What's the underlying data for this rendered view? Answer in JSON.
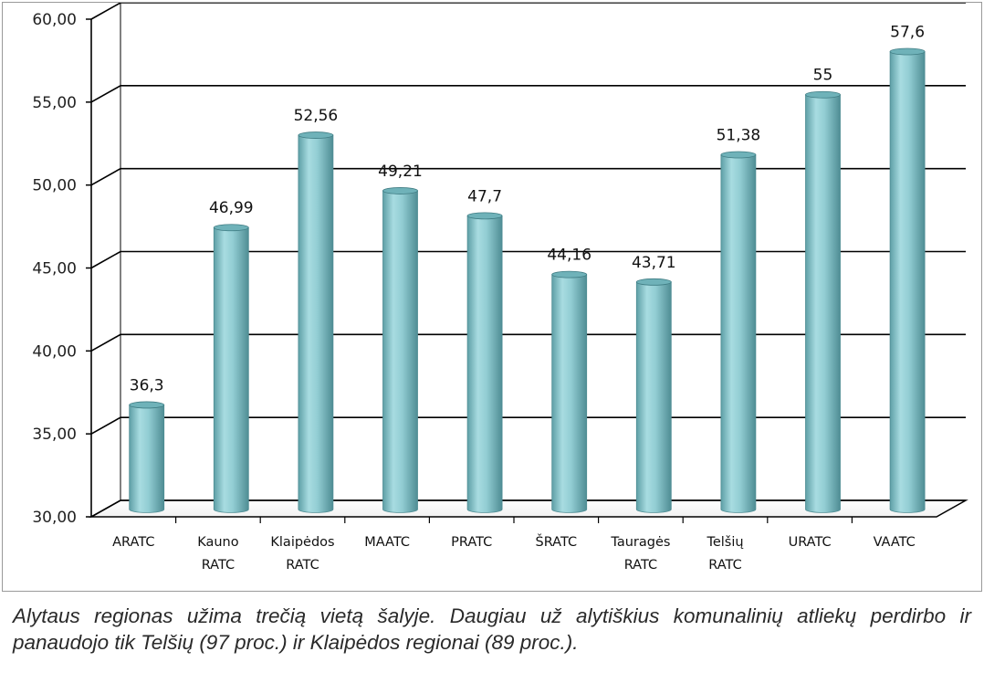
{
  "chart_data": {
    "type": "bar",
    "categories": [
      "ARATC",
      "Kauno RATC",
      "Klaipėdos RATC",
      "MAATC",
      "PRATC",
      "ŠRATC",
      "Tauragės RATC",
      "Telšių RATC",
      "URATC",
      "VAATC"
    ],
    "category_lines": [
      [
        "ARATC"
      ],
      [
        "Kauno",
        "RATC"
      ],
      [
        "Klaipėdos",
        "RATC"
      ],
      [
        "MAATC"
      ],
      [
        "PRATC"
      ],
      [
        "ŠRATC"
      ],
      [
        "Tauragės",
        "RATC"
      ],
      [
        "Telšių",
        "RATC"
      ],
      [
        "URATC"
      ],
      [
        "VAATC"
      ]
    ],
    "values": [
      36.3,
      46.99,
      52.56,
      49.21,
      47.7,
      44.16,
      43.71,
      51.38,
      55,
      57.6
    ],
    "data_labels": [
      "36,3",
      "46,99",
      "52,56",
      "49,21",
      "47,7",
      "44,16",
      "43,71",
      "51,38",
      "55",
      "57,6"
    ],
    "ylim": [
      30,
      60
    ],
    "yticks": [
      30,
      35,
      40,
      45,
      50,
      55,
      60
    ],
    "ytick_labels": [
      "30,00",
      "35,00",
      "40,00",
      "45,00",
      "50,00",
      "55,00",
      "60,00"
    ],
    "grid": true,
    "style": "3d-cylinder",
    "bar_color": "#8ec9cf",
    "title": "",
    "xlabel": "",
    "ylabel": ""
  },
  "caption": "Alytaus regionas užima trečią vietą šalyje. Daugiau už alytiškius komunalinių atliekų perdirbo ir panaudojo tik Telšių (97 proc.) ir Klaipėdos regionai (89 proc.)."
}
